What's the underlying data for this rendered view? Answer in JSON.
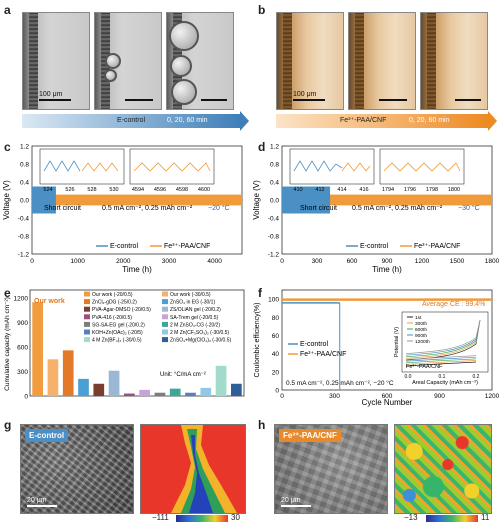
{
  "panels": {
    "a": {
      "label": "a",
      "scalebar": "100 μm",
      "arrow_label": "E-control",
      "arrow_times": "0, 20, 60 min"
    },
    "b": {
      "label": "b",
      "scalebar": "100 μm",
      "arrow_label": "Fe³⁺-PAA/CNF",
      "arrow_times": "0, 20, 60 min"
    },
    "c": {
      "label": "c",
      "ylabel": "Voltage (V)",
      "xlabel": "Time (h)",
      "short_circuit": "Short circuit",
      "conditions": "0.5 mA cm⁻², 0.25 mAh cm⁻²",
      "temp": "−20 °C",
      "legend": [
        "E-control",
        "Fe³⁺-PAA/CNF"
      ],
      "yticks": [
        "-1.2",
        "-0.8",
        "-0.4",
        "0.0",
        "0.4",
        "0.8",
        "1.2"
      ],
      "xticks": [
        "0",
        "1000",
        "2000",
        "3000",
        "4000"
      ],
      "inset1_xticks": [
        "524",
        "526",
        "528",
        "530"
      ],
      "inset2_xticks": [
        "4594",
        "4596",
        "4598",
        "4600"
      ]
    },
    "d": {
      "label": "d",
      "ylabel": "Voltage (V)",
      "xlabel": "Time (h)",
      "short_circuit": "Short circuit",
      "conditions": "0.5 mA cm⁻², 0.25 mAh cm⁻²",
      "temp": "−30 °C",
      "legend": [
        "E-control",
        "Fe³⁺-PAA/CNF"
      ],
      "yticks": [
        "-1.2",
        "-0.8",
        "-0.4",
        "0.0",
        "0.4",
        "0.8",
        "1.2"
      ],
      "xticks": [
        "0",
        "300",
        "600",
        "900",
        "1200",
        "1500",
        "1800"
      ],
      "inset1_xticks": [
        "410",
        "412",
        "414",
        "416"
      ],
      "inset2_xticks": [
        "1794",
        "1796",
        "1798",
        "1800"
      ]
    },
    "e": {
      "label": "e",
      "ylabel": "Cumulative capacity (mAh cm⁻²)",
      "yticks": [
        "0",
        "300",
        "600",
        "900",
        "1200"
      ],
      "our_work": "Our work",
      "unit": "Unit: °C/mA cm⁻²"
    },
    "f": {
      "label": "f",
      "ylabel": "Coulombic efficiency(%)",
      "xlabel": "Cycle Number",
      "avg_ce": "Average CE : 99.4%",
      "legend": [
        "E-control",
        "Fe³⁺-PAA/CNF"
      ],
      "conditions": "0.5 mA cm⁻², 0.25 mAh cm⁻², −20 °C",
      "yticks": [
        "0",
        "20",
        "40",
        "60",
        "80",
        "100"
      ],
      "xticks": [
        "0",
        "300",
        "600",
        "900",
        "1200"
      ],
      "inset": {
        "ylabel": "Potential (V)",
        "xlabel": "Areal Capacity (mAh cm⁻²)",
        "title": "Fe³⁺-PAA/CNF",
        "cycles": [
          "1st",
          "300th",
          "600th",
          "900th",
          "1200th"
        ],
        "xticks": [
          "0.0",
          "0.1",
          "0.2"
        ]
      }
    },
    "g": {
      "label": "g",
      "tag": "E-control",
      "scalebar": "20 μm",
      "cbar_min": "−111",
      "cbar_max": "30"
    },
    "h": {
      "label": "h",
      "tag": "Fe³⁺-PAA/CNF",
      "scalebar": "20 μm",
      "cbar_min": "−13",
      "cbar_max": "11"
    }
  },
  "chart_data": [
    {
      "type": "line",
      "panel": "c",
      "title": "",
      "xlabel": "Time (h)",
      "ylabel": "Voltage (V)",
      "xlim": [
        0,
        4600
      ],
      "ylim": [
        -1.2,
        1.2
      ],
      "series": [
        {
          "name": "E-control",
          "x_range": [
            0,
            524
          ],
          "amplitude": 0.3,
          "note_end": "Short circuit"
        },
        {
          "name": "Fe³⁺-PAA/CNF",
          "x_range": [
            0,
            4600
          ],
          "amplitude": 0.12
        }
      ]
    },
    {
      "type": "line",
      "panel": "d",
      "title": "",
      "xlabel": "Time (h)",
      "ylabel": "Voltage (V)",
      "xlim": [
        0,
        1800
      ],
      "ylim": [
        -1.2,
        1.2
      ],
      "series": [
        {
          "name": "E-control",
          "x_range": [
            0,
            412
          ],
          "amplitude": 0.3,
          "note_end": "Short circuit"
        },
        {
          "name": "Fe³⁺-PAA/CNF",
          "x_range": [
            0,
            1800
          ],
          "amplitude": 0.12
        }
      ]
    },
    {
      "type": "bar",
      "panel": "e",
      "title": "",
      "ylabel": "Cumulative capacity (mAh cm⁻²)",
      "ylim": [
        0,
        1300
      ],
      "categories": [
        "Our work (-20/0.5)",
        "Our work (-30/0.5)",
        "ZnCl₂-gDG (-25/0.2)",
        "ZnSO₄ in EG (-30/1)",
        "PVA-Agar-DMSO (-20/0.5)",
        "ZS/OLiAN gel (-20/0.2)",
        "PVA-416 (-20/0.5)",
        "SA-Trem gel (-20/0.5)",
        "SG-SA-EG gel (-20/0.2)",
        "2 M ZnSO₄-CG (-20/2)",
        "KOH+Zn(OAc)₂ (-20/5)",
        "2 M Zn(CF₃SO₃)₂ (-30/0.5)",
        "4 M Zn(BF₄)₂ (-30/0.5)",
        "ZnSO₄+Mg(ClO₄)₂ (-30/0.5)"
      ],
      "values": [
        1150,
        450,
        560,
        210,
        150,
        310,
        30,
        75,
        40,
        90,
        40,
        100,
        370,
        150
      ]
    },
    {
      "type": "line",
      "panel": "f",
      "title": "",
      "xlabel": "Cycle Number",
      "ylabel": "Coulombic efficiency(%)",
      "xlim": [
        0,
        1200
      ],
      "ylim": [
        0,
        110
      ],
      "series": [
        {
          "name": "E-control",
          "x_range": [
            0,
            330
          ],
          "values": 98
        },
        {
          "name": "Fe³⁺-PAA/CNF",
          "x_range": [
            0,
            1200
          ],
          "values": 99.4
        }
      ]
    }
  ],
  "e_colors": [
    "#f29b3f",
    "#f6b26b",
    "#e37a2a",
    "#4aa0d5",
    "#7a3e30",
    "#9ab7d4",
    "#9b4f7a",
    "#c9a3d8",
    "#7d7d7d",
    "#3ba79a",
    "#5a7fbf",
    "#93c7e8",
    "#a1dbcc",
    "#2e5f98"
  ]
}
